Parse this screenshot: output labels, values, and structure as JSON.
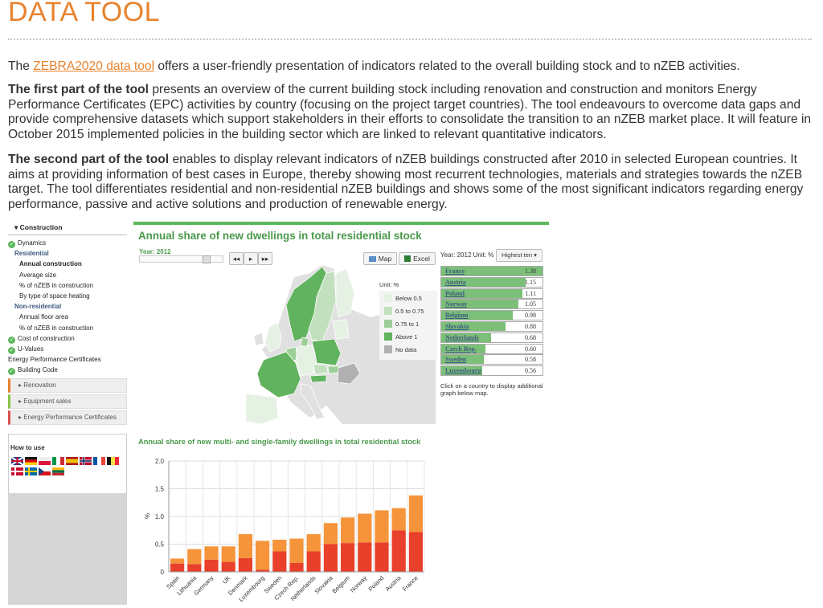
{
  "page": {
    "title": "DATA TOOL",
    "p1_pre": "The ",
    "p1_link": "ZEBRA2020 data tool",
    "p1_post": " offers a user-friendly presentation of indicators related to the overall building stock and to nZEB activities.",
    "p2_bold": "The first part of the tool",
    "p2_rest": " presents an overview of the current building stock including renovation and construction and monitors Energy Performance Certificates (EPC) activities by country (focusing on the project target countries). The tool endeavours to overcome data gaps and provide comprehensive datasets which support stakeholders in their efforts to consolidate the transition to an nZEB market place. It will feature in October 2015 implemented policies in the building sector which are linked to relevant quantitative indicators.",
    "p3_bold": "The second part of the tool",
    "p3_rest": " enables to display relevant indicators of nZEB buildings constructed after 2010 in selected European countries. It aims at providing information of best cases in Europe, thereby showing most recurrent technologies, materials and strategies towards the nZEB target. The tool differentiates residential and non-residential nZEB buildings and shows some of the most significant indicators regarding energy performance, passive and active solutions and production of renewable energy."
  },
  "sidebar": {
    "header": "Construction",
    "items": [
      {
        "label": "Dynamics",
        "type": "ok"
      },
      {
        "label": "Residential",
        "type": "group"
      },
      {
        "label": "Annual construction",
        "type": "active"
      },
      {
        "label": "Average size",
        "type": "sub"
      },
      {
        "label": "% of nZEB in construction",
        "type": "sub"
      },
      {
        "label": "By type of space heating",
        "type": "sub"
      },
      {
        "label": "Non-residential",
        "type": "group"
      },
      {
        "label": "Annual floor area",
        "type": "sub"
      },
      {
        "label": "% of nZEB in construction",
        "type": "sub"
      },
      {
        "label": "Cost of construction",
        "type": "ok"
      },
      {
        "label": "U-Values",
        "type": "ok"
      },
      {
        "label": "Energy Performance Certificates",
        "type": "plain"
      },
      {
        "label": "Building Code",
        "type": "ok"
      }
    ],
    "sections": [
      {
        "label": "Renovation",
        "color": "#e8832e"
      },
      {
        "label": "Equipment sales",
        "color": "#8bc34a"
      },
      {
        "label": "Energy Performance Certificates",
        "color": "#d9534f"
      }
    ],
    "how_to_use": "How to use"
  },
  "panel": {
    "title": "Annual share of new dwellings in total residential stock",
    "year_label": "Year: 2012",
    "map_button": "Map",
    "excel_button": "Excel",
    "ranking_meta": "Year: 2012  Unit: %",
    "ranking_select": "Highest ten",
    "legend_unit": "Unit: %",
    "legend": [
      {
        "label": "Below 0.5",
        "color": "#e5f1e3"
      },
      {
        "label": "0.5 to 0.75",
        "color": "#c2e0be"
      },
      {
        "label": "0.75 to 1",
        "color": "#9ccf97"
      },
      {
        "label": "Above 1",
        "color": "#62b35f"
      },
      {
        "label": "No data",
        "color": "#b0b0b0"
      }
    ],
    "ranking": [
      {
        "name": "France",
        "value": "1.38",
        "v": 1.38
      },
      {
        "name": "Austria",
        "value": "1.15",
        "v": 1.15
      },
      {
        "name": "Poland",
        "value": "1.11",
        "v": 1.11
      },
      {
        "name": "Norway",
        "value": "1.05",
        "v": 1.05
      },
      {
        "name": "Belgium",
        "value": "0.98",
        "v": 0.98
      },
      {
        "name": "Slovakia",
        "value": "0.88",
        "v": 0.88
      },
      {
        "name": "Netherlands",
        "value": "0.68",
        "v": 0.68
      },
      {
        "name": "Czech Rep.",
        "value": "0.60",
        "v": 0.6
      },
      {
        "name": "Sweden",
        "value": "0.58",
        "v": 0.58
      },
      {
        "name": "Luxembourg",
        "value": "0.56",
        "v": 0.56
      }
    ],
    "click_hint": "Click on a country to display additional graph below map."
  },
  "chart_data": {
    "type": "bar",
    "stacked": true,
    "title": "Annual share of new multi- and single-family dwellings in total residential stock",
    "ylabel": "%",
    "ylim": [
      0,
      2.0
    ],
    "yticks": [
      "0",
      "0.5",
      "1.0",
      "1.5",
      "2.0"
    ],
    "categories": [
      "Spain",
      "Lithuania",
      "Germany",
      "UK",
      "Denmark",
      "Luxembourg",
      "Sweden",
      "Czech Rep.",
      "Netherlands",
      "Slovakia",
      "Belgium",
      "Norway",
      "Poland",
      "Austria",
      "France"
    ],
    "series": [
      {
        "color": "#e8402a",
        "values": [
          0.15,
          0.14,
          0.22,
          0.18,
          0.25,
          0.04,
          0.37,
          0.16,
          0.37,
          0.5,
          0.52,
          0.53,
          0.53,
          0.75,
          0.72
        ]
      },
      {
        "color": "#f5943a",
        "values": [
          0.09,
          0.27,
          0.24,
          0.28,
          0.43,
          0.52,
          0.21,
          0.44,
          0.31,
          0.38,
          0.46,
          0.52,
          0.58,
          0.4,
          0.66
        ]
      }
    ],
    "grid": true
  }
}
